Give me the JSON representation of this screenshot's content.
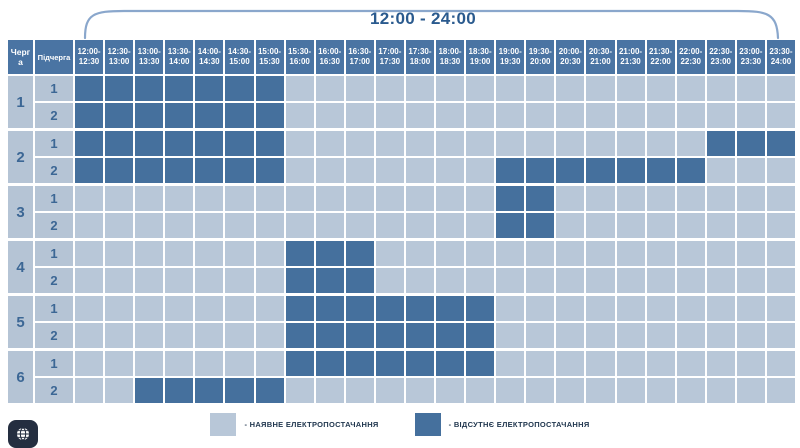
{
  "page": {
    "title": "12:00 - 24:00"
  },
  "table": {
    "queue_header": "Черга",
    "subqueue_header": "Підчерга"
  },
  "chart_data": {
    "type": "heatmap",
    "title": "12:00 - 24:00",
    "x_labels": [
      "12:00-12:30",
      "12:30-13:00",
      "13:00-13:30",
      "13:30-14:00",
      "14:00-14:30",
      "14:30-15:00",
      "15:00-15:30",
      "15:30-16:00",
      "16:00-16:30",
      "16:30-17:00",
      "17:00-17:30",
      "17:30-18:00",
      "18:00-18:30",
      "18:30-19:00",
      "19:00-19:30",
      "19:30-20:00",
      "20:00-20:30",
      "20:30-21:00",
      "21:00-21:30",
      "21:30-22:00",
      "22:00-22:30",
      "22:30-23:00",
      "23:00-23:30",
      "23:30-24:00"
    ],
    "value_meaning": {
      "0": "наявне електропостачання",
      "1": "відсутнє електропостачання"
    },
    "legend_position": "bottom",
    "row_groups": [
      {
        "queue": "1",
        "rows": [
          {
            "subqueue": "1",
            "outage_slots": [
              0,
              1,
              2,
              3,
              4,
              5,
              6
            ]
          },
          {
            "subqueue": "2",
            "outage_slots": [
              0,
              1,
              2,
              3,
              4,
              5,
              6
            ]
          }
        ]
      },
      {
        "queue": "2",
        "rows": [
          {
            "subqueue": "1",
            "outage_slots": [
              0,
              1,
              2,
              3,
              4,
              5,
              6,
              21,
              22,
              23
            ]
          },
          {
            "subqueue": "2",
            "outage_slots": [
              0,
              1,
              2,
              3,
              4,
              5,
              6,
              14,
              15,
              16,
              17,
              18,
              19,
              20
            ]
          }
        ]
      },
      {
        "queue": "3",
        "rows": [
          {
            "subqueue": "1",
            "outage_slots": [
              14,
              15
            ]
          },
          {
            "subqueue": "2",
            "outage_slots": [
              14,
              15
            ]
          }
        ]
      },
      {
        "queue": "4",
        "rows": [
          {
            "subqueue": "1",
            "outage_slots": [
              7,
              8,
              9
            ]
          },
          {
            "subqueue": "2",
            "outage_slots": [
              7,
              8,
              9
            ]
          }
        ]
      },
      {
        "queue": "5",
        "rows": [
          {
            "subqueue": "1",
            "outage_slots": [
              7,
              8,
              9,
              10,
              11,
              12,
              13
            ]
          },
          {
            "subqueue": "2",
            "outage_slots": [
              7,
              8,
              9,
              10,
              11,
              12,
              13
            ]
          }
        ]
      },
      {
        "queue": "6",
        "rows": [
          {
            "subqueue": "1",
            "outage_slots": [
              7,
              8,
              9,
              10,
              11,
              12,
              13
            ]
          },
          {
            "subqueue": "2",
            "outage_slots": [
              2,
              3,
              4,
              5,
              6
            ]
          }
        ]
      }
    ]
  },
  "legend": {
    "items": [
      {
        "label": "- НАЯВНЕ ЕЛЕКТРОПОСТАЧАННЯ",
        "state": "available",
        "color": "#b8c7d8"
      },
      {
        "label": "- ВІДСУТНЄ ЕЛЕКТРОПОСТАЧАННЯ",
        "state": "absent",
        "color": "#45709d"
      }
    ]
  },
  "colors": {
    "header_bg": "#4a74a3",
    "available_cell": "#b8c7d8",
    "absent_cell": "#45709d",
    "label_cell": "#b5c4d5",
    "title_text": "#2a5a8e",
    "number_text": "#3c6795",
    "brace_stroke": "#8aa7cc",
    "widget_bg": "#242e40"
  },
  "widget": {
    "icon": "globe-icon"
  }
}
